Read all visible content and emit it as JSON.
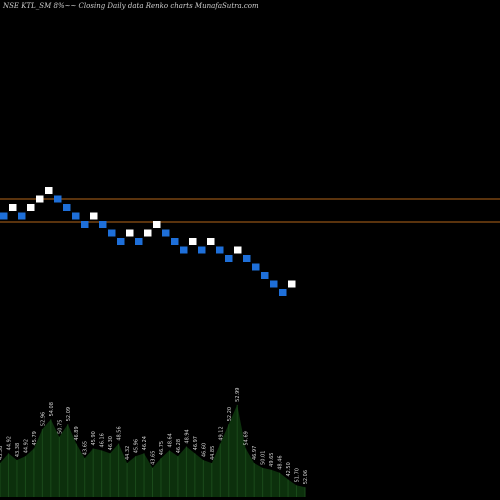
{
  "title": "NSE KTL_SM 8%~~ Closing Daily data Renko charts MunafaSutra.com",
  "chart_data": {
    "type": "renko",
    "colors": {
      "up": "#ffffff",
      "down": "#1e6fd9",
      "reference_line": "#b3661a",
      "volume": "#0c300c"
    },
    "reference_lines": [
      {
        "label": "upper reference",
        "value": 1.0
      },
      {
        "label": "lower reference",
        "value": 0.0
      }
    ],
    "bricks": [
      {
        "dir": "down",
        "level": 0
      },
      {
        "dir": "up",
        "level": 1
      },
      {
        "dir": "down",
        "level": 0
      },
      {
        "dir": "up",
        "level": 1
      },
      {
        "dir": "up",
        "level": 2
      },
      {
        "dir": "up",
        "level": 3
      },
      {
        "dir": "down",
        "level": 2
      },
      {
        "dir": "down",
        "level": 1
      },
      {
        "dir": "down",
        "level": 0
      },
      {
        "dir": "down",
        "level": -1
      },
      {
        "dir": "up",
        "level": 0
      },
      {
        "dir": "down",
        "level": -1
      },
      {
        "dir": "down",
        "level": -2
      },
      {
        "dir": "down",
        "level": -3
      },
      {
        "dir": "up",
        "level": -2
      },
      {
        "dir": "down",
        "level": -3
      },
      {
        "dir": "up",
        "level": -2
      },
      {
        "dir": "up",
        "level": -1
      },
      {
        "dir": "down",
        "level": -2
      },
      {
        "dir": "down",
        "level": -3
      },
      {
        "dir": "down",
        "level": -4
      },
      {
        "dir": "up",
        "level": -3
      },
      {
        "dir": "down",
        "level": -4
      },
      {
        "dir": "up",
        "level": -3
      },
      {
        "dir": "down",
        "level": -4
      },
      {
        "dir": "down",
        "level": -5
      },
      {
        "dir": "up",
        "level": -4
      },
      {
        "dir": "down",
        "level": -5
      },
      {
        "dir": "down",
        "level": -6
      },
      {
        "dir": "down",
        "level": -7
      },
      {
        "dir": "down",
        "level": -8
      },
      {
        "dir": "down",
        "level": -9
      },
      {
        "dir": "up",
        "level": -8
      }
    ],
    "volume_labels": [
      "43.38",
      "44.92",
      "43.38",
      "44.92",
      "45.79",
      "52.96",
      "54.08",
      "50.75",
      "52.09",
      "46.89",
      "43.65",
      "45.90",
      "46.16",
      "46.30",
      "48.56",
      "44.32",
      "45.96",
      "46.24",
      "43.65",
      "46.75",
      "48.64",
      "46.28",
      "48.94",
      "46.97",
      "46.60",
      "44.85",
      "49.12",
      "52.20",
      "52.99",
      "54.69",
      "46.97",
      "50.01",
      "49.65",
      "48.46",
      "42.50",
      "51.70",
      "52.06"
    ],
    "volume_heights": [
      0.35,
      0.45,
      0.38,
      0.42,
      0.5,
      0.7,
      0.8,
      0.62,
      0.75,
      0.55,
      0.4,
      0.5,
      0.48,
      0.45,
      0.55,
      0.35,
      0.42,
      0.45,
      0.3,
      0.4,
      0.48,
      0.42,
      0.52,
      0.45,
      0.38,
      0.35,
      0.55,
      0.75,
      0.95,
      0.5,
      0.35,
      0.3,
      0.28,
      0.25,
      0.18,
      0.12,
      0.1
    ]
  }
}
